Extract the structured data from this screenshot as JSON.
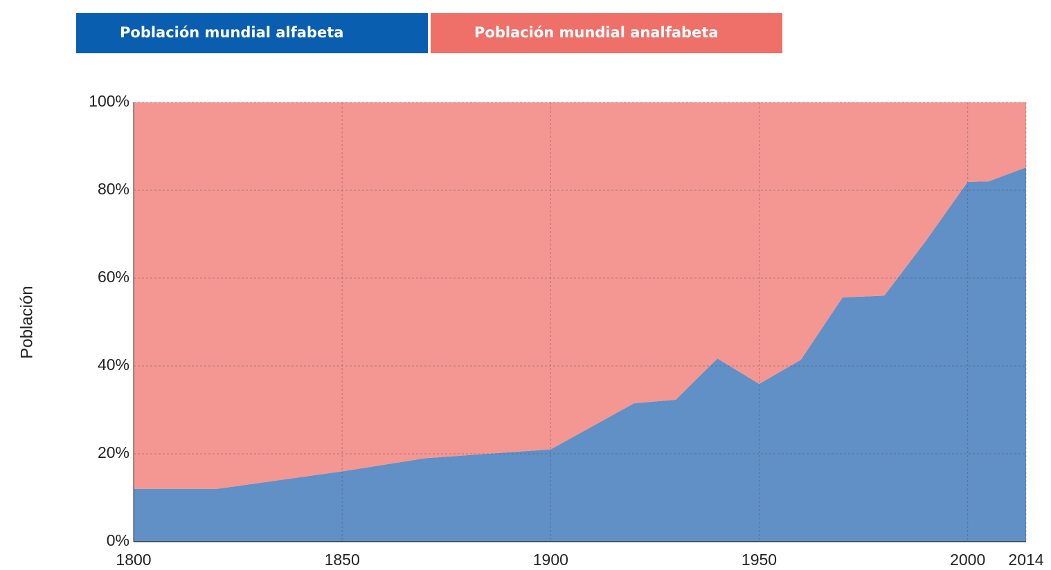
{
  "chart_data": {
    "type": "stacked_area",
    "y_label": "Población",
    "x": [
      1800,
      1820,
      1850,
      1870,
      1900,
      1920,
      1930,
      1940,
      1950,
      1960,
      1970,
      1980,
      1990,
      2000,
      2005,
      2014
    ],
    "series": [
      {
        "name": "Población mundial alfabeta",
        "color": "#6090c5",
        "legend_color": "#0a5eb0",
        "values": [
          12,
          12,
          16,
          19,
          21,
          31.5,
          32.3,
          41.7,
          35.9,
          41.4,
          55.6,
          56,
          68.5,
          81.9,
          82,
          85.2
        ]
      },
      {
        "name": "Población mundial analfabeta",
        "color": "#f49691",
        "legend_color": "#ef7068",
        "values": [
          88,
          88,
          84,
          81,
          79,
          68.5,
          67.7,
          58.3,
          64.1,
          58.6,
          44.4,
          44,
          31.5,
          18.1,
          18,
          14.8
        ]
      }
    ],
    "xlim": [
      1800,
      2014
    ],
    "xticks": [
      1800,
      1850,
      1900,
      1950,
      2000,
      2014
    ],
    "ylim": [
      0,
      100
    ],
    "yticks": [
      {
        "value": 0,
        "label": "0%"
      },
      {
        "value": 20,
        "label": "20%"
      },
      {
        "value": 40,
        "label": "40%"
      },
      {
        "value": 60,
        "label": "60%"
      },
      {
        "value": 80,
        "label": "80%"
      },
      {
        "value": 100,
        "label": "100%"
      }
    ],
    "grid": true
  }
}
